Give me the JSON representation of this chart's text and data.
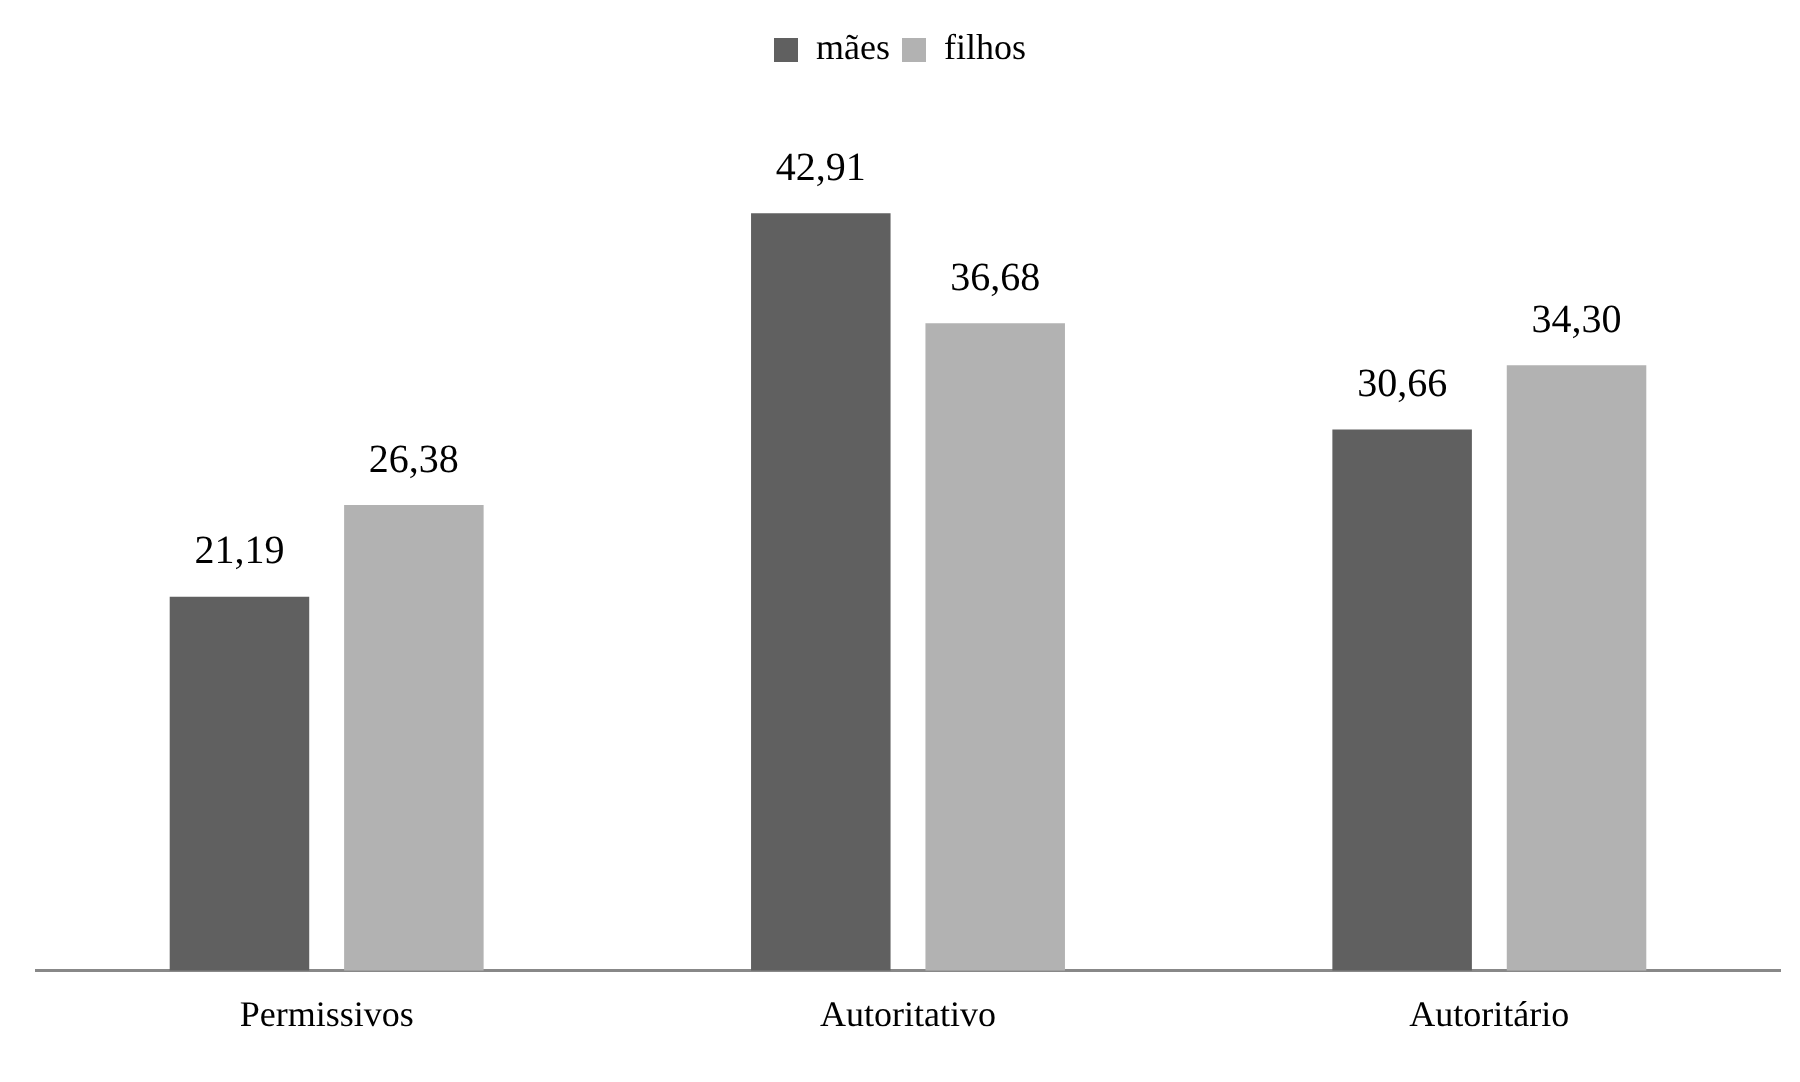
{
  "chart_data": {
    "type": "bar",
    "categories": [
      "Permissivos",
      "Autoritativo",
      "Autoritário"
    ],
    "series": [
      {
        "name": "mães",
        "color": "#606060",
        "values": [
          21.19,
          42.91,
          30.66
        ],
        "value_labels": [
          "21,19",
          "42,91",
          "30,66"
        ]
      },
      {
        "name": "filhos",
        "color": "#b2b2b2",
        "values": [
          26.38,
          36.68,
          34.3
        ],
        "value_labels": [
          "26,38",
          "36,68",
          "34,30"
        ]
      }
    ],
    "relative": false,
    "grid": false,
    "legend": "top"
  }
}
